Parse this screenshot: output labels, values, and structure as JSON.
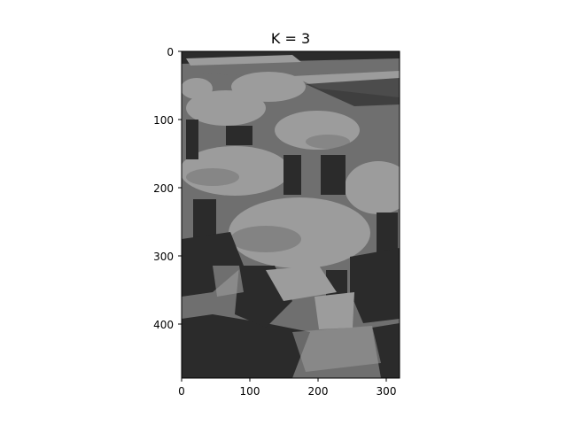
{
  "figure": {
    "title": "K = 3",
    "image_description_colors": {
      "palette": [
        "#2b2b2b",
        "#6f6f6f",
        "#9c9c9c"
      ],
      "clusters": 3
    }
  },
  "axes": {
    "x_ticks": [
      "0",
      "100",
      "200",
      "300"
    ],
    "y_ticks": [
      "0",
      "100",
      "200",
      "300",
      "400"
    ],
    "xlim": [
      0,
      320
    ],
    "ylim": [
      480,
      0
    ]
  }
}
